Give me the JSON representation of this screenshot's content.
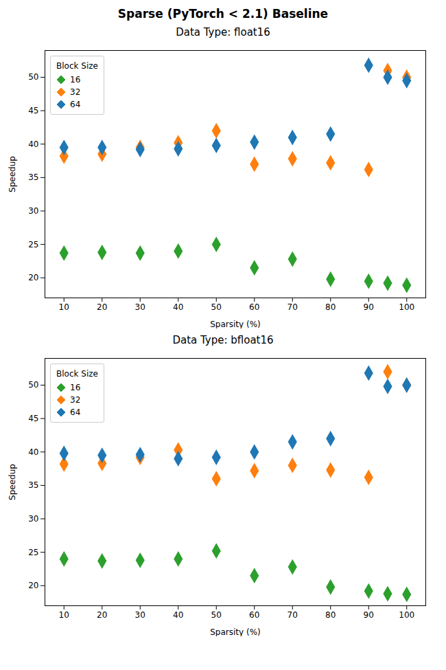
{
  "title": "Sparse (PyTorch < 2.1) Baseline",
  "chart_data": [
    {
      "type": "scatter",
      "title": "Data Type: float16",
      "xlabel": "Sparsity (%)",
      "ylabel": "Speedup",
      "legend_title": "Block Size",
      "x": [
        10,
        20,
        30,
        40,
        50,
        60,
        70,
        80,
        90,
        95,
        100
      ],
      "series": [
        {
          "name": "16",
          "color": "#2ca02c",
          "values": [
            23.7,
            23.8,
            23.7,
            24.0,
            25.0,
            21.5,
            22.8,
            19.8,
            19.5,
            19.2,
            18.9
          ]
        },
        {
          "name": "32",
          "color": "#ff7f0e",
          "values": [
            38.2,
            38.5,
            39.5,
            40.2,
            42.0,
            37.0,
            37.8,
            37.2,
            36.2,
            51.0,
            50.0
          ]
        },
        {
          "name": "64",
          "color": "#1f77b4",
          "values": [
            39.5,
            39.5,
            39.2,
            39.3,
            39.8,
            40.3,
            41.0,
            41.5,
            51.8,
            50.0,
            49.5
          ]
        }
      ],
      "xlim": [
        5,
        105
      ],
      "xticks": [
        10,
        20,
        30,
        40,
        50,
        60,
        70,
        80,
        90,
        100
      ],
      "ylim": [
        17,
        54
      ],
      "yticks": [
        20,
        25,
        30,
        35,
        40,
        45,
        50
      ],
      "marker": "diamond",
      "grid": false,
      "legend": "upper left"
    },
    {
      "type": "scatter",
      "title": "Data Type: bfloat16",
      "xlabel": "Sparsity (%)",
      "ylabel": "Speedup",
      "legend_title": "Block Size",
      "x": [
        10,
        20,
        30,
        40,
        50,
        60,
        70,
        80,
        90,
        95,
        100
      ],
      "series": [
        {
          "name": "16",
          "color": "#2ca02c",
          "values": [
            24.0,
            23.7,
            23.8,
            24.0,
            25.2,
            21.5,
            22.8,
            19.8,
            19.2,
            18.8,
            18.7
          ]
        },
        {
          "name": "32",
          "color": "#ff7f0e",
          "values": [
            38.2,
            38.3,
            39.2,
            40.3,
            36.0,
            37.2,
            38.0,
            37.3,
            36.2,
            52.0,
            50.0
          ]
        },
        {
          "name": "64",
          "color": "#1f77b4",
          "values": [
            39.8,
            39.5,
            39.6,
            39.0,
            39.2,
            40.0,
            41.5,
            42.0,
            51.8,
            49.8,
            50.0
          ]
        }
      ],
      "xlim": [
        5,
        105
      ],
      "xticks": [
        10,
        20,
        30,
        40,
        50,
        60,
        70,
        80,
        90,
        100
      ],
      "ylim": [
        17,
        54
      ],
      "yticks": [
        20,
        25,
        30,
        35,
        40,
        45,
        50
      ],
      "marker": "diamond",
      "grid": false,
      "legend": "upper left"
    }
  ]
}
